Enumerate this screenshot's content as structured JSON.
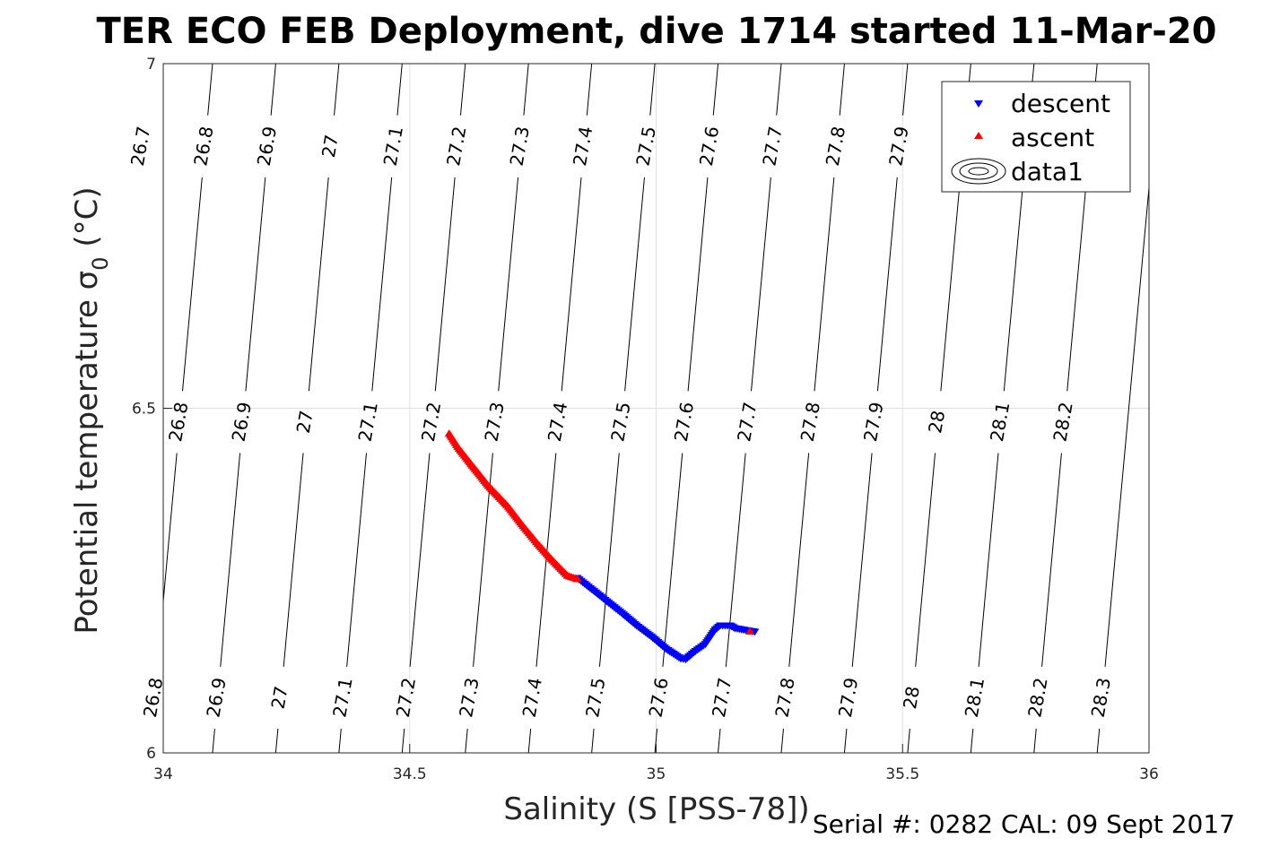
{
  "chart_data": {
    "type": "scatter",
    "title": "TER ECO FEB Deployment, dive 1714 started 11-Mar-20",
    "xlabel": "Salinity (S [PSS-78])",
    "ylabel_main": "Potential temperature σ",
    "ylabel_sub": "0",
    "ylabel_unit": " (°C)",
    "xlim": [
      34,
      36
    ],
    "ylim": [
      6,
      7
    ],
    "xticks": [
      34,
      34.5,
      35,
      35.5,
      36
    ],
    "yticks": [
      6,
      6.5,
      7
    ],
    "grid": true,
    "colors": {
      "descent": "#0000ff",
      "ascent": "#ff0000",
      "contour": "#000000",
      "grid": "#dfdfdf"
    },
    "legend": {
      "placement": "top-right",
      "entries": [
        {
          "label": "descent",
          "marker": "triangle-down",
          "color": "#0000ff"
        },
        {
          "label": "ascent",
          "marker": "triangle-up",
          "color": "#ff0000"
        },
        {
          "label": "data1",
          "marker": "contour-icon",
          "color": "#000000"
        }
      ]
    },
    "density_contours": {
      "levels": [
        26.7,
        26.8,
        26.9,
        27,
        27.1,
        27.2,
        27.3,
        27.4,
        27.5,
        27.6,
        27.7,
        27.8,
        27.9,
        28,
        28.1,
        28.2,
        28.3
      ],
      "label_rows": [
        {
          "theta": 6.88,
          "labels": [
            "26.7",
            "26.8",
            "26.9",
            "27",
            "27.1",
            "27.2",
            "27.3",
            "27.4",
            "27.5",
            "27.6",
            "27.7",
            "27.8",
            "27.9",
            "28.2"
          ]
        },
        {
          "theta": 6.48,
          "labels": [
            "26.8",
            "26.9",
            "27",
            "27.1",
            "27.2",
            "27.3",
            "27.4",
            "27.5",
            "27.6",
            "27.7",
            "27.8",
            "27.9",
            "28",
            "28.1",
            "28.2"
          ]
        },
        {
          "theta": 6.08,
          "labels": [
            "26.8",
            "26.9",
            "27",
            "27.1",
            "27.2",
            "27.3",
            "27.4",
            "27.5",
            "27.6",
            "27.7",
            "27.8",
            "27.9",
            "28",
            "28.1",
            "28.2",
            "28.3"
          ]
        }
      ]
    },
    "series": [
      {
        "name": "descent",
        "marker": "triangle-down",
        "points": [
          [
            34.84,
            6.253
          ],
          [
            34.87,
            6.236
          ],
          [
            34.9,
            6.219
          ],
          [
            34.93,
            6.202
          ],
          [
            34.96,
            6.184
          ],
          [
            34.99,
            6.168
          ],
          [
            35.02,
            6.15
          ],
          [
            35.05,
            6.136
          ],
          [
            35.06,
            6.135
          ],
          [
            35.08,
            6.147
          ],
          [
            35.1,
            6.157
          ],
          [
            35.12,
            6.178
          ],
          [
            35.13,
            6.184
          ],
          [
            35.15,
            6.184
          ],
          [
            35.16,
            6.18
          ],
          [
            35.2,
            6.175
          ]
        ]
      },
      {
        "name": "ascent",
        "marker": "triangle-up",
        "points": [
          [
            34.58,
            6.464
          ],
          [
            34.6,
            6.442
          ],
          [
            34.63,
            6.415
          ],
          [
            34.66,
            6.388
          ],
          [
            34.7,
            6.358
          ],
          [
            34.73,
            6.33
          ],
          [
            34.76,
            6.304
          ],
          [
            34.79,
            6.28
          ],
          [
            34.82,
            6.258
          ],
          [
            34.84,
            6.253
          ],
          [
            35.19,
            6.177
          ]
        ]
      }
    ]
  },
  "footer": {
    "serial_text": "Serial #: 0282  CAL: 09 Sept 2017"
  }
}
